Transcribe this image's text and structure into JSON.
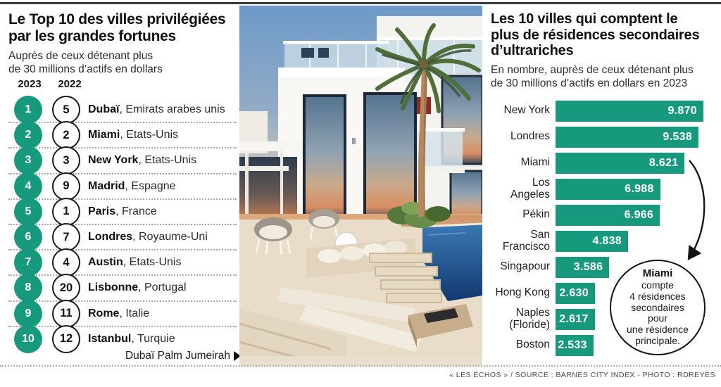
{
  "colors": {
    "accent": "#17997e",
    "rule": "#3a3a3a",
    "dotted": "#a9a9a9"
  },
  "left_panel": {
    "title": "Le Top 10 des villes privilégiées\npar les grandes fortunes",
    "subtitle": "Auprès de ceux détenant plus\nde 30 millions d’actifs en dollars",
    "year_columns": [
      "2023",
      "2022"
    ],
    "rows": [
      {
        "rank_2023": "1",
        "rank_2022": "5",
        "city": "Dubaï",
        "country": ", Emirats arabes unis"
      },
      {
        "rank_2023": "2",
        "rank_2022": "2",
        "city": "Miami",
        "country": ", Etats-Unis"
      },
      {
        "rank_2023": "3",
        "rank_2022": "3",
        "city": "New York",
        "country": ", Etats-Unis"
      },
      {
        "rank_2023": "4",
        "rank_2022": "9",
        "city": "Madrid",
        "country": ", Espagne"
      },
      {
        "rank_2023": "5",
        "rank_2022": "1",
        "city": "Paris",
        "country": ", France"
      },
      {
        "rank_2023": "6",
        "rank_2022": "7",
        "city": "Londres",
        "country": ", Royaume-Uni"
      },
      {
        "rank_2023": "7",
        "rank_2022": "4",
        "city": "Austin",
        "country": ", Etats-Unis"
      },
      {
        "rank_2023": "8",
        "rank_2022": "20",
        "city": "Lisbonne",
        "country": ", Portugal"
      },
      {
        "rank_2023": "9",
        "rank_2022": "11",
        "city": "Rome",
        "country": ", Italie"
      },
      {
        "rank_2023": "10",
        "rank_2022": "12",
        "city": "Istanbul",
        "country": ", Turquie"
      }
    ],
    "photo_caption": "Dubaï Palm Jumeirah"
  },
  "right_panel": {
    "title": "Les 10 villes qui comptent le\nplus de résidences secondaires\nd’ultrariches",
    "subtitle": "En nombre, auprès de ceux détenant plus\nde 30 millions d’actifs en dollars en 2023",
    "annotation_city": "Miami",
    "annotation_text": "compte\n4 résidences\nsecondaires\npour\nune résidence\nprincipale."
  },
  "chart_data": {
    "type": "bar",
    "orientation": "horizontal",
    "categories": [
      "New York",
      "Londres",
      "Miami",
      "Los Angeles",
      "Pékin",
      "San Francisco",
      "Singapour",
      "Hong Kong",
      "Naples (Floride)",
      "Boston"
    ],
    "values": [
      9870,
      9538,
      8621,
      6988,
      6966,
      4838,
      3586,
      2630,
      2617,
      2533
    ],
    "value_labels": [
      "9.870",
      "9.538",
      "8.621",
      "6.988",
      "6.966",
      "4.838",
      "3.586",
      "2.630",
      "2.617",
      "2.533"
    ],
    "xlim": [
      0,
      9870
    ],
    "bar_color": "#17997e",
    "value_label_position": "inside-right",
    "grid": false,
    "legend": false
  },
  "footer": {
    "credits": "« LES ÉCHOS » / SOURCE : BARNES CITY INDEX - PHOTO : RDREYES"
  }
}
